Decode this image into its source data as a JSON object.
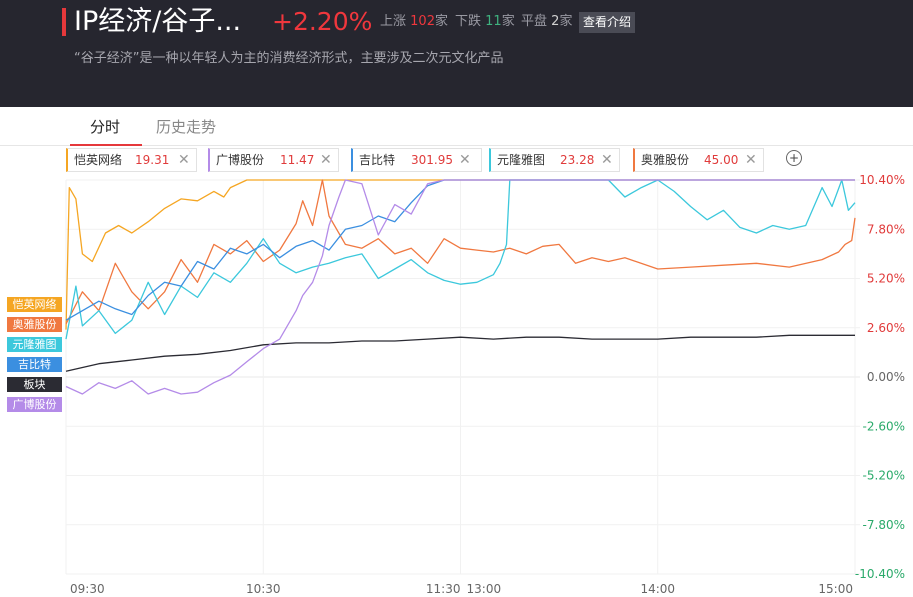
{
  "header": {
    "title": "IP经济/谷子...",
    "change_pct": "+2.20%",
    "up_label": "上涨",
    "up_count": "102",
    "up_unit": "家",
    "down_label": "下跌",
    "down_count": "11",
    "down_unit": "家",
    "flat_label": "平盘",
    "flat_count": "2",
    "flat_unit": "家",
    "intro_button": "查看介绍",
    "description": "“谷子经济”是一种以年轻人为主的消费经济形式，主要涉及二次元文化产品"
  },
  "tabs": [
    {
      "label": "分时",
      "active": true
    },
    {
      "label": "历史走势",
      "active": false
    }
  ],
  "chips": [
    {
      "name": "恺英网络",
      "value": "19.31",
      "color": "#f5a623"
    },
    {
      "name": "广博股份",
      "value": "11.47",
      "color": "#b48be8"
    },
    {
      "name": "吉比特",
      "value": "301.95",
      "color": "#3b8fe0"
    },
    {
      "name": "元隆雅图",
      "value": "23.28",
      "color": "#3cc8dc"
    },
    {
      "name": "奥雅股份",
      "value": "45.00",
      "color": "#f07840"
    }
  ],
  "chip_close_glyph": "✕",
  "add_glyph": "+",
  "legend_tags": [
    {
      "label": "恺英网络",
      "color": "#f5a623"
    },
    {
      "label": "奥雅股份",
      "color": "#f07840"
    },
    {
      "label": "元隆雅图",
      "color": "#3cc8dc"
    },
    {
      "label": "吉比特",
      "color": "#3b8fe0"
    },
    {
      "label": "板块",
      "color": "#2b2b33"
    },
    {
      "label": "广博股份",
      "color": "#b48be8"
    }
  ],
  "chart_data": {
    "type": "line",
    "x_labels": [
      "09:30",
      "10:30",
      "11:30",
      "13:00",
      "14:00",
      "15:00"
    ],
    "y_ticks": [
      "10.40%",
      "7.80%",
      "5.20%",
      "2.60%",
      "0.00%",
      "-2.60%",
      "-5.20%",
      "-7.80%",
      "-10.40%"
    ],
    "ylim": [
      -10.4,
      10.4
    ],
    "y_unit": "%",
    "x_range_minutes": [
      0,
      240
    ],
    "series": [
      {
        "name": "恺英网络",
        "color": "#f5a623",
        "points": [
          [
            0,
            2.5
          ],
          [
            1,
            10.0
          ],
          [
            3,
            9.4
          ],
          [
            5,
            6.5
          ],
          [
            8,
            6.1
          ],
          [
            12,
            7.6
          ],
          [
            16,
            8.0
          ],
          [
            20,
            7.6
          ],
          [
            25,
            8.2
          ],
          [
            30,
            8.9
          ],
          [
            35,
            9.4
          ],
          [
            40,
            9.3
          ],
          [
            45,
            9.8
          ],
          [
            48,
            9.5
          ],
          [
            50,
            10.0
          ],
          [
            55,
            10.4
          ],
          [
            240,
            10.4
          ]
        ]
      },
      {
        "name": "奥雅股份",
        "color": "#f07840",
        "points": [
          [
            0,
            2.8
          ],
          [
            5,
            4.5
          ],
          [
            10,
            3.5
          ],
          [
            15,
            6.0
          ],
          [
            20,
            4.5
          ],
          [
            25,
            3.6
          ],
          [
            30,
            4.5
          ],
          [
            35,
            6.2
          ],
          [
            40,
            5.0
          ],
          [
            45,
            7.0
          ],
          [
            50,
            6.5
          ],
          [
            55,
            7.2
          ],
          [
            60,
            6.1
          ],
          [
            65,
            6.7
          ],
          [
            70,
            8.1
          ],
          [
            72,
            9.3
          ],
          [
            75,
            8.0
          ],
          [
            78,
            10.4
          ],
          [
            80,
            8.5
          ],
          [
            85,
            7.0
          ],
          [
            90,
            6.8
          ],
          [
            95,
            7.3
          ],
          [
            100,
            6.5
          ],
          [
            105,
            6.8
          ],
          [
            110,
            6.0
          ],
          [
            115,
            7.3
          ],
          [
            120,
            6.8
          ],
          [
            125,
            6.7
          ],
          [
            130,
            6.6
          ],
          [
            135,
            6.8
          ],
          [
            140,
            6.5
          ],
          [
            145,
            6.9
          ],
          [
            150,
            7.0
          ],
          [
            155,
            6.0
          ],
          [
            160,
            6.3
          ],
          [
            165,
            6.1
          ],
          [
            170,
            6.3
          ],
          [
            180,
            5.7
          ],
          [
            190,
            5.8
          ],
          [
            200,
            5.9
          ],
          [
            210,
            6.0
          ],
          [
            220,
            5.8
          ],
          [
            230,
            6.2
          ],
          [
            235,
            6.6
          ],
          [
            237,
            7.0
          ],
          [
            239,
            7.2
          ],
          [
            240,
            8.4
          ]
        ]
      },
      {
        "name": "元隆雅图",
        "color": "#3cc8dc",
        "points": [
          [
            0,
            2.0
          ],
          [
            3,
            4.8
          ],
          [
            5,
            2.7
          ],
          [
            10,
            3.5
          ],
          [
            15,
            2.3
          ],
          [
            20,
            3.0
          ],
          [
            25,
            5.0
          ],
          [
            30,
            3.3
          ],
          [
            35,
            4.8
          ],
          [
            40,
            4.2
          ],
          [
            45,
            5.5
          ],
          [
            50,
            5.0
          ],
          [
            55,
            6.0
          ],
          [
            60,
            7.3
          ],
          [
            65,
            6.0
          ],
          [
            70,
            5.5
          ],
          [
            75,
            5.8
          ],
          [
            80,
            6.0
          ],
          [
            85,
            6.3
          ],
          [
            90,
            6.5
          ],
          [
            95,
            5.2
          ],
          [
            100,
            5.7
          ],
          [
            105,
            6.2
          ],
          [
            110,
            5.5
          ],
          [
            115,
            5.1
          ],
          [
            120,
            4.9
          ],
          [
            125,
            5.0
          ],
          [
            130,
            5.4
          ],
          [
            132,
            6.0
          ],
          [
            134,
            7.0
          ],
          [
            135,
            10.4
          ],
          [
            140,
            10.4
          ],
          [
            145,
            10.4
          ],
          [
            150,
            10.4
          ],
          [
            155,
            10.4
          ],
          [
            160,
            10.4
          ],
          [
            165,
            10.4
          ],
          [
            170,
            9.5
          ],
          [
            175,
            10.0
          ],
          [
            180,
            10.4
          ],
          [
            185,
            9.8
          ],
          [
            190,
            9.0
          ],
          [
            195,
            8.3
          ],
          [
            200,
            8.8
          ],
          [
            205,
            7.9
          ],
          [
            210,
            7.6
          ],
          [
            215,
            8.0
          ],
          [
            220,
            7.8
          ],
          [
            225,
            8.0
          ],
          [
            230,
            10.0
          ],
          [
            233,
            9.0
          ],
          [
            236,
            10.4
          ],
          [
            238,
            8.8
          ],
          [
            240,
            9.2
          ]
        ]
      },
      {
        "name": "吉比特",
        "color": "#3b8fe0",
        "points": [
          [
            0,
            3.0
          ],
          [
            5,
            3.5
          ],
          [
            10,
            4.0
          ],
          [
            15,
            3.6
          ],
          [
            20,
            3.3
          ],
          [
            25,
            4.3
          ],
          [
            30,
            5.0
          ],
          [
            35,
            4.8
          ],
          [
            40,
            6.1
          ],
          [
            45,
            5.7
          ],
          [
            50,
            6.8
          ],
          [
            55,
            6.5
          ],
          [
            60,
            7.0
          ],
          [
            65,
            6.3
          ],
          [
            70,
            6.9
          ],
          [
            75,
            7.2
          ],
          [
            80,
            6.7
          ],
          [
            85,
            7.8
          ],
          [
            90,
            8.0
          ],
          [
            95,
            8.5
          ],
          [
            100,
            8.2
          ],
          [
            105,
            9.2
          ],
          [
            110,
            10.1
          ],
          [
            115,
            10.4
          ],
          [
            240,
            10.4
          ]
        ]
      },
      {
        "name": "板块",
        "color": "#2b2b33",
        "points": [
          [
            0,
            0.3
          ],
          [
            10,
            0.7
          ],
          [
            20,
            0.9
          ],
          [
            30,
            1.1
          ],
          [
            40,
            1.2
          ],
          [
            50,
            1.4
          ],
          [
            60,
            1.7
          ],
          [
            70,
            1.8
          ],
          [
            80,
            1.8
          ],
          [
            90,
            1.9
          ],
          [
            100,
            1.9
          ],
          [
            110,
            2.0
          ],
          [
            120,
            2.1
          ],
          [
            130,
            2.0
          ],
          [
            140,
            2.1
          ],
          [
            150,
            2.1
          ],
          [
            160,
            2.0
          ],
          [
            170,
            2.0
          ],
          [
            180,
            2.0
          ],
          [
            190,
            2.1
          ],
          [
            200,
            2.1
          ],
          [
            210,
            2.1
          ],
          [
            220,
            2.2
          ],
          [
            230,
            2.2
          ],
          [
            240,
            2.2
          ]
        ]
      },
      {
        "name": "广博股份",
        "color": "#b48be8",
        "points": [
          [
            0,
            -0.5
          ],
          [
            5,
            -0.9
          ],
          [
            10,
            -0.3
          ],
          [
            15,
            -0.6
          ],
          [
            20,
            -0.2
          ],
          [
            25,
            -0.9
          ],
          [
            30,
            -0.6
          ],
          [
            35,
            -0.9
          ],
          [
            40,
            -0.8
          ],
          [
            45,
            -0.3
          ],
          [
            50,
            0.1
          ],
          [
            55,
            0.8
          ],
          [
            60,
            1.5
          ],
          [
            65,
            2.0
          ],
          [
            70,
            3.5
          ],
          [
            72,
            4.3
          ],
          [
            75,
            5.0
          ],
          [
            78,
            6.4
          ],
          [
            80,
            8.0
          ],
          [
            83,
            9.5
          ],
          [
            85,
            10.4
          ],
          [
            90,
            10.2
          ],
          [
            95,
            7.5
          ],
          [
            100,
            9.1
          ],
          [
            105,
            8.6
          ],
          [
            110,
            10.2
          ],
          [
            115,
            10.4
          ],
          [
            240,
            10.4
          ]
        ]
      }
    ]
  }
}
